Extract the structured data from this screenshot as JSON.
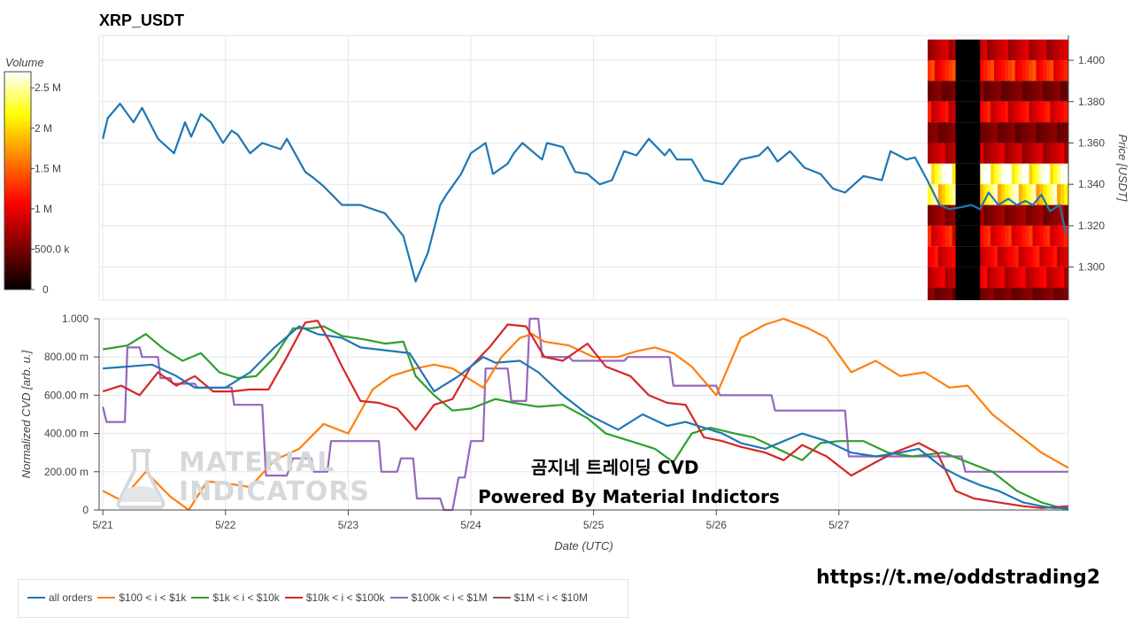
{
  "colors": {
    "all_orders": "#1f77b4",
    "r100_1k": "#ff7f0e",
    "r1k_10k": "#2ca02c",
    "r10k_100k": "#d62728",
    "r100k_1m": "#9467bd",
    "r1m_10m": "#8c564b"
  },
  "header": {
    "title": "XRP_USDT"
  },
  "overlay": {
    "line1": "곰지네 트레이딩 CVD",
    "line2": "Powered By Material Indictors",
    "url": "https://t.me/oddstrading2",
    "watermark_line1": "MATERIAL",
    "watermark_line2": "INDICATORS"
  },
  "chart_data": [
    {
      "type": "line",
      "title": "XRP_USDT",
      "ylabel": "Price [USDT]",
      "ylim": [
        1.284,
        1.412
      ],
      "yticks": [
        "1.300",
        "1.320",
        "1.340",
        "1.360",
        "1.380",
        "1.400"
      ],
      "grid": true,
      "series": [
        {
          "name": "Price",
          "x": [
            0.0,
            0.04,
            0.14,
            0.25,
            0.32,
            0.45,
            0.58,
            0.67,
            0.72,
            0.8,
            0.88,
            0.98,
            1.05,
            1.1,
            1.2,
            1.3,
            1.45,
            1.5,
            1.65,
            1.72,
            1.8,
            1.95,
            2.1,
            2.3,
            2.45,
            2.55,
            2.65,
            2.75,
            2.8,
            2.92,
            3.0,
            3.12,
            3.18,
            3.3,
            3.35,
            3.42,
            3.58,
            3.62,
            3.75,
            3.85,
            3.95,
            4.05,
            4.15,
            4.25,
            4.35,
            4.45,
            4.58,
            4.62,
            4.68,
            4.8,
            4.9,
            5.05,
            5.2,
            5.35,
            5.42,
            5.5,
            5.6,
            5.72,
            5.85,
            5.95,
            6.05,
            6.2,
            6.35,
            6.42,
            6.55,
            6.62,
            6.72,
            6.82,
            6.9,
            7.0,
            7.08,
            7.15,
            7.22,
            7.3,
            7.38,
            7.45,
            7.52,
            7.58,
            7.65,
            7.72,
            7.8,
            7.85
          ],
          "values": [
            1.362,
            1.372,
            1.379,
            1.37,
            1.377,
            1.362,
            1.355,
            1.37,
            1.363,
            1.374,
            1.37,
            1.36,
            1.366,
            1.364,
            1.355,
            1.36,
            1.357,
            1.362,
            1.346,
            1.343,
            1.339,
            1.33,
            1.33,
            1.326,
            1.315,
            1.293,
            1.307,
            1.33,
            1.335,
            1.345,
            1.355,
            1.36,
            1.345,
            1.35,
            1.355,
            1.36,
            1.352,
            1.36,
            1.358,
            1.346,
            1.345,
            1.34,
            1.342,
            1.356,
            1.354,
            1.362,
            1.354,
            1.357,
            1.352,
            1.352,
            1.342,
            1.34,
            1.352,
            1.354,
            1.358,
            1.351,
            1.356,
            1.348,
            1.345,
            1.338,
            1.336,
            1.344,
            1.342,
            1.356,
            1.352,
            1.353,
            1.342,
            1.33,
            1.328,
            1.329,
            1.33,
            1.328,
            1.336,
            1.33,
            1.333,
            1.33,
            1.332,
            1.33,
            1.335,
            1.327,
            1.33,
            1.316
          ]
        }
      ]
    },
    {
      "type": "heatmap",
      "title": "Volume",
      "colorbar_ticks": [
        "0",
        "500.0 k",
        "1 M",
        "1.5 M",
        "2 M",
        "2.5 M"
      ],
      "colorbar_range": [
        0,
        2700000
      ],
      "price_levels": [
        1.405,
        1.395,
        1.385,
        1.375,
        1.365,
        1.355,
        1.345,
        1.335,
        1.325,
        1.315,
        1.305,
        1.295,
        1.285
      ],
      "volumes": [
        800000,
        1200000,
        500000,
        1000000,
        500000,
        800000,
        2500000,
        2200000,
        600000,
        1100000,
        1000000,
        900000,
        500000
      ]
    },
    {
      "type": "line",
      "xlabel": "Date (UTC)",
      "ylabel": "Normalized CVD [arb. u.]",
      "xlim": [
        -0.03,
        7.87
      ],
      "ylim": [
        0,
        1.0
      ],
      "xticks": [
        "5/21",
        "5/22",
        "5/23",
        "5/24",
        "5/25",
        "5/26",
        "5/27"
      ],
      "yticks": [
        "0",
        "200.00 m",
        "400.00 m",
        "600.00 m",
        "800.00 m",
        "1.000"
      ],
      "grid": true,
      "legend_position": "bottom",
      "series": [
        {
          "name": "all orders",
          "x": [
            0,
            0.4,
            0.6,
            0.75,
            1,
            1.2,
            1.4,
            1.6,
            1.75,
            1.95,
            2.1,
            2.5,
            2.7,
            2.9,
            3.1,
            3.2,
            3.4,
            3.55,
            3.75,
            3.95,
            4.2,
            4.4,
            4.6,
            4.75,
            4.9,
            5.05,
            5.2,
            5.4,
            5.55,
            5.7,
            5.9,
            6.1,
            6.3,
            6.5,
            6.65,
            6.85,
            7.0,
            7.15,
            7.3,
            7.5,
            7.65,
            7.75,
            7.87
          ],
          "values": [
            0.74,
            0.76,
            0.7,
            0.64,
            0.64,
            0.72,
            0.85,
            0.96,
            0.92,
            0.9,
            0.85,
            0.82,
            0.62,
            0.7,
            0.8,
            0.77,
            0.78,
            0.72,
            0.6,
            0.5,
            0.42,
            0.5,
            0.44,
            0.46,
            0.43,
            0.4,
            0.35,
            0.32,
            0.36,
            0.4,
            0.36,
            0.3,
            0.28,
            0.3,
            0.32,
            0.22,
            0.17,
            0.13,
            0.1,
            0.04,
            0.02,
            0.01,
            0.01
          ]
        },
        {
          "name": "$100 < i < $1k",
          "x": [
            0,
            0.15,
            0.35,
            0.55,
            0.7,
            0.85,
            1.0,
            1.2,
            1.4,
            1.6,
            1.8,
            2.0,
            2.2,
            2.35,
            2.55,
            2.7,
            2.85,
            3.1,
            3.25,
            3.4,
            3.5,
            3.6,
            3.8,
            4.0,
            4.2,
            4.35,
            4.5,
            4.65,
            4.8,
            5.0,
            5.2,
            5.4,
            5.55,
            5.75,
            5.9,
            6.1,
            6.3,
            6.5,
            6.7,
            6.9,
            7.05,
            7.25,
            7.45,
            7.65,
            7.87
          ],
          "values": [
            0.1,
            0.05,
            0.2,
            0.07,
            0.0,
            0.15,
            0.14,
            0.12,
            0.26,
            0.32,
            0.45,
            0.4,
            0.63,
            0.7,
            0.74,
            0.76,
            0.74,
            0.64,
            0.8,
            0.9,
            0.92,
            0.88,
            0.86,
            0.8,
            0.8,
            0.83,
            0.85,
            0.82,
            0.75,
            0.6,
            0.9,
            0.97,
            1.0,
            0.95,
            0.9,
            0.72,
            0.78,
            0.7,
            0.72,
            0.64,
            0.65,
            0.5,
            0.4,
            0.3,
            0.22
          ]
        },
        {
          "name": "$1k < i < $10k",
          "x": [
            0,
            0.2,
            0.35,
            0.5,
            0.65,
            0.8,
            0.95,
            1.1,
            1.25,
            1.4,
            1.55,
            1.7,
            1.8,
            1.95,
            2.15,
            2.3,
            2.45,
            2.55,
            2.7,
            2.85,
            3.0,
            3.2,
            3.35,
            3.55,
            3.75,
            3.95,
            4.1,
            4.3,
            4.5,
            4.65,
            4.8,
            4.95,
            5.15,
            5.3,
            5.5,
            5.7,
            5.85,
            6.0,
            6.2,
            6.4,
            6.6,
            6.85,
            7.05,
            7.25,
            7.45,
            7.65,
            7.87
          ],
          "values": [
            0.84,
            0.86,
            0.92,
            0.84,
            0.78,
            0.82,
            0.72,
            0.69,
            0.7,
            0.8,
            0.95,
            0.95,
            0.96,
            0.91,
            0.89,
            0.87,
            0.88,
            0.7,
            0.6,
            0.52,
            0.53,
            0.58,
            0.56,
            0.54,
            0.55,
            0.48,
            0.4,
            0.36,
            0.32,
            0.25,
            0.4,
            0.43,
            0.4,
            0.38,
            0.32,
            0.26,
            0.35,
            0.36,
            0.36,
            0.3,
            0.28,
            0.3,
            0.25,
            0.2,
            0.1,
            0.04,
            0.0
          ]
        },
        {
          "name": "$10k < i < $100k",
          "x": [
            0,
            0.15,
            0.3,
            0.45,
            0.6,
            0.75,
            0.9,
            1.05,
            1.2,
            1.35,
            1.5,
            1.65,
            1.75,
            1.85,
            1.95,
            2.1,
            2.25,
            2.4,
            2.55,
            2.7,
            2.85,
            3.0,
            3.15,
            3.3,
            3.45,
            3.6,
            3.75,
            3.95,
            4.1,
            4.3,
            4.45,
            4.6,
            4.75,
            4.9,
            5.05,
            5.2,
            5.4,
            5.55,
            5.7,
            5.9,
            6.1,
            6.3,
            6.45,
            6.65,
            6.8,
            6.95,
            7.1,
            7.3,
            7.5,
            7.65,
            7.87
          ],
          "values": [
            0.62,
            0.65,
            0.6,
            0.72,
            0.65,
            0.7,
            0.62,
            0.62,
            0.63,
            0.63,
            0.8,
            0.98,
            0.99,
            0.88,
            0.75,
            0.57,
            0.56,
            0.53,
            0.42,
            0.55,
            0.58,
            0.75,
            0.85,
            0.97,
            0.96,
            0.8,
            0.78,
            0.87,
            0.75,
            0.7,
            0.6,
            0.56,
            0.55,
            0.38,
            0.36,
            0.33,
            0.3,
            0.26,
            0.34,
            0.28,
            0.18,
            0.25,
            0.3,
            0.35,
            0.3,
            0.1,
            0.06,
            0.04,
            0.02,
            0.01,
            0.02
          ]
        },
        {
          "name": "$100k < i < $1M",
          "x": [
            0,
            0.03,
            0.18,
            0.2,
            0.3,
            0.32,
            0.45,
            0.47,
            0.55,
            0.57,
            0.75,
            0.77,
            1.05,
            1.07,
            1.3,
            1.33,
            1.48,
            1.5,
            1.55,
            1.6,
            1.7,
            1.72,
            1.83,
            1.86,
            1.88,
            1.9,
            1.92,
            2.0,
            2.25,
            2.27,
            2.4,
            2.43,
            2.53,
            2.56,
            2.75,
            2.78,
            2.85,
            2.9,
            2.95,
            3.0,
            3.1,
            3.12,
            3.3,
            3.33,
            3.45,
            3.48,
            3.55,
            3.58,
            3.8,
            3.83,
            4.25,
            4.28,
            4.62,
            4.65,
            5.0,
            5.03,
            5.3,
            5.33,
            5.45,
            5.48,
            5.5,
            5.53,
            6.05,
            6.08,
            6.45,
            6.5,
            6.55,
            6.6,
            6.8,
            6.83,
            7.0,
            7.03,
            7.5,
            7.87
          ],
          "values": [
            0.54,
            0.46,
            0.46,
            0.85,
            0.85,
            0.8,
            0.8,
            0.69,
            0.69,
            0.66,
            0.66,
            0.64,
            0.64,
            0.55,
            0.55,
            0.18,
            0.18,
            0.18,
            0.27,
            0.27,
            0.27,
            0.2,
            0.2,
            0.36,
            0.36,
            0.36,
            0.36,
            0.36,
            0.36,
            0.2,
            0.2,
            0.27,
            0.27,
            0.06,
            0.06,
            0.0,
            0.0,
            0.17,
            0.17,
            0.36,
            0.36,
            0.74,
            0.74,
            0.57,
            0.57,
            1.0,
            1.0,
            0.8,
            0.8,
            0.78,
            0.78,
            0.8,
            0.8,
            0.65,
            0.65,
            0.6,
            0.6,
            0.6,
            0.6,
            0.52,
            0.52,
            0.52,
            0.52,
            0.28,
            0.28,
            0.28,
            0.28,
            0.28,
            0.28,
            0.28,
            0.28,
            0.2,
            0.2,
            0.2
          ]
        },
        {
          "name": "$1M < i < $10M",
          "x": [],
          "values": []
        }
      ]
    }
  ]
}
